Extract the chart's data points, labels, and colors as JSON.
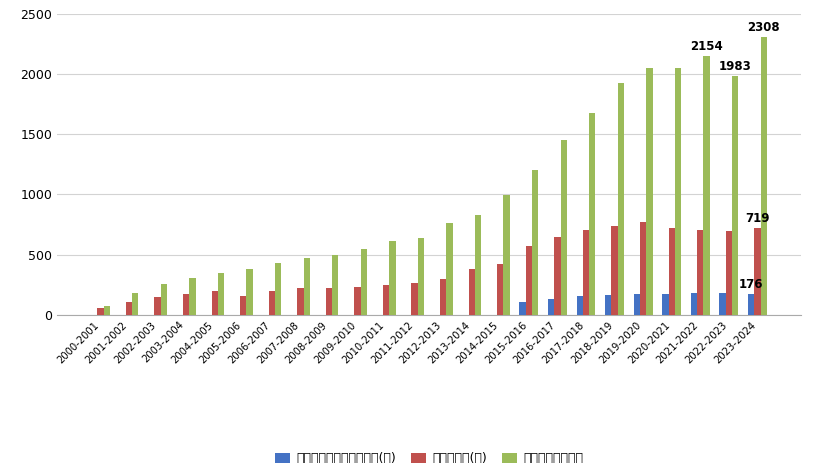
{
  "categories": [
    "2000-2001",
    "2001-2002",
    "2002-2003",
    "2003-2004",
    "2004-2005",
    "2005-2006",
    "2006-2007",
    "2007-2008",
    "2008-2009",
    "2009-2010",
    "2010-2011",
    "2011-2012",
    "2012-2013",
    "2013-2014",
    "2014-2015",
    "2015-2016",
    "2016-2017",
    "2017-2018",
    "2018-2019",
    "2019-2020",
    "2020-2021",
    "2021-2022",
    "2022-2023",
    "2023-2024"
  ],
  "ski_resorts_with_lifts": [
    0,
    0,
    0,
    0,
    0,
    0,
    0,
    0,
    0,
    0,
    0,
    0,
    0,
    0,
    0,
    110,
    135,
    157,
    168,
    171,
    176,
    178,
    182,
    176
  ],
  "ski_resorts_total": [
    60,
    110,
    150,
    170,
    200,
    160,
    200,
    220,
    220,
    230,
    245,
    265,
    300,
    380,
    425,
    568,
    646,
    703,
    742,
    770,
    718,
    701,
    697,
    719
  ],
  "skier_visits": [
    70,
    180,
    260,
    310,
    350,
    380,
    430,
    470,
    500,
    545,
    610,
    640,
    760,
    830,
    995,
    1200,
    1450,
    1680,
    1930,
    2050,
    2050,
    2154,
    1983,
    2308
  ],
  "color_lifts": "#4472c4",
  "color_resorts": "#c0504d",
  "color_visits": "#9bbb59",
  "bar_width": 0.22,
  "ylim": [
    0,
    2500
  ],
  "yticks": [
    0,
    500,
    1000,
    1500,
    2000,
    2500
  ],
  "legend_labels": [
    "有架空索道的滑雪场数量(家)",
    "滑雪场数量(家)",
    "滑雪人次（万次）"
  ],
  "background_color": "#ffffff",
  "grid_color": "#d3d3d3"
}
